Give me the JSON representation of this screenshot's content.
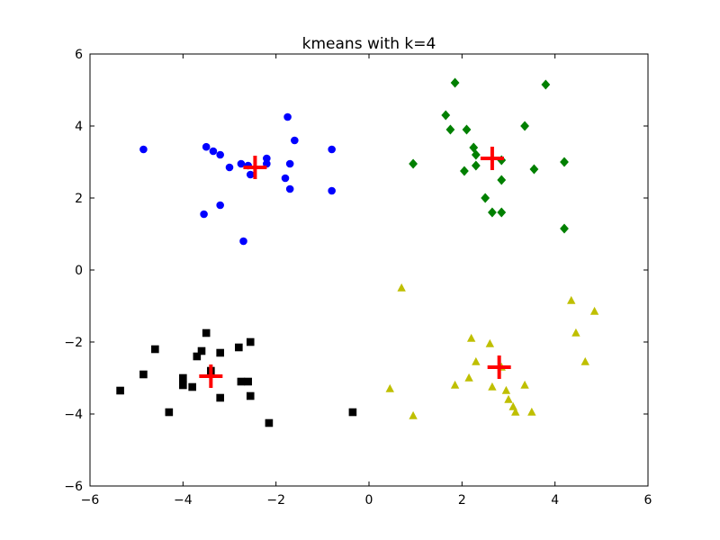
{
  "chart_data": {
    "type": "scatter",
    "title": "kmeans with k=4",
    "xlabel": "",
    "ylabel": "",
    "xlim": [
      -6,
      6
    ],
    "ylim": [
      -6,
      6
    ],
    "xticks": [
      -6,
      -4,
      -2,
      0,
      2,
      4,
      6
    ],
    "yticks": [
      -6,
      -4,
      -2,
      0,
      2,
      4,
      6
    ],
    "xtick_labels": [
      "−6",
      "−4",
      "−2",
      "0",
      "2",
      "4",
      "6"
    ],
    "ytick_labels": [
      "−6",
      "−4",
      "−2",
      "0",
      "2",
      "4",
      "6"
    ],
    "grid": false,
    "legend": "none",
    "series": [
      {
        "marker": "circle",
        "color": "#0000ff",
        "points": [
          [
            -4.85,
            3.35
          ],
          [
            -3.5,
            3.42
          ],
          [
            -3.35,
            3.3
          ],
          [
            -3.2,
            3.2
          ],
          [
            -3.0,
            2.85
          ],
          [
            -2.75,
            2.95
          ],
          [
            -2.6,
            2.9
          ],
          [
            -2.55,
            2.65
          ],
          [
            -2.2,
            3.1
          ],
          [
            -2.2,
            2.95
          ],
          [
            -1.8,
            2.55
          ],
          [
            -1.75,
            4.25
          ],
          [
            -1.7,
            2.95
          ],
          [
            -1.7,
            2.25
          ],
          [
            -1.6,
            3.6
          ],
          [
            -0.8,
            3.35
          ],
          [
            -0.8,
            2.2
          ],
          [
            -3.55,
            1.55
          ],
          [
            -3.2,
            1.8
          ],
          [
            -2.7,
            0.8
          ]
        ]
      },
      {
        "marker": "diamond",
        "color": "#008000",
        "points": [
          [
            1.85,
            5.2
          ],
          [
            3.8,
            5.15
          ],
          [
            1.65,
            4.3
          ],
          [
            1.75,
            3.9
          ],
          [
            2.1,
            3.9
          ],
          [
            3.35,
            4.0
          ],
          [
            2.25,
            3.4
          ],
          [
            2.3,
            3.2
          ],
          [
            2.3,
            2.9
          ],
          [
            2.05,
            2.75
          ],
          [
            2.85,
            3.05
          ],
          [
            3.55,
            2.8
          ],
          [
            4.2,
            3.0
          ],
          [
            0.95,
            2.95
          ],
          [
            2.85,
            2.5
          ],
          [
            2.5,
            2.0
          ],
          [
            2.65,
            1.6
          ],
          [
            2.85,
            1.6
          ],
          [
            4.2,
            1.15
          ]
        ]
      },
      {
        "marker": "square",
        "color": "#000000",
        "points": [
          [
            -5.35,
            -3.35
          ],
          [
            -4.85,
            -2.9
          ],
          [
            -4.6,
            -2.2
          ],
          [
            -4.3,
            -3.95
          ],
          [
            -4.0,
            -3.0
          ],
          [
            -4.0,
            -3.2
          ],
          [
            -3.8,
            -3.25
          ],
          [
            -3.7,
            -2.4
          ],
          [
            -3.6,
            -2.25
          ],
          [
            -3.5,
            -1.75
          ],
          [
            -3.4,
            -2.8
          ],
          [
            -3.2,
            -2.3
          ],
          [
            -3.2,
            -3.55
          ],
          [
            -2.8,
            -2.15
          ],
          [
            -2.75,
            -3.1
          ],
          [
            -2.6,
            -3.1
          ],
          [
            -2.55,
            -2.0
          ],
          [
            -2.55,
            -3.5
          ],
          [
            -2.15,
            -4.25
          ],
          [
            -0.35,
            -3.95
          ]
        ]
      },
      {
        "marker": "triangle",
        "color": "#bfbf00",
        "points": [
          [
            0.7,
            -0.5
          ],
          [
            0.45,
            -3.3
          ],
          [
            0.95,
            -4.05
          ],
          [
            1.85,
            -3.2
          ],
          [
            2.15,
            -3.0
          ],
          [
            2.2,
            -1.9
          ],
          [
            2.3,
            -2.55
          ],
          [
            2.6,
            -2.05
          ],
          [
            2.65,
            -3.25
          ],
          [
            2.85,
            -2.7
          ],
          [
            2.95,
            -3.35
          ],
          [
            3.0,
            -3.6
          ],
          [
            3.1,
            -3.8
          ],
          [
            3.15,
            -3.95
          ],
          [
            3.35,
            -3.2
          ],
          [
            3.5,
            -3.95
          ],
          [
            4.35,
            -0.85
          ],
          [
            4.45,
            -1.75
          ],
          [
            4.65,
            -2.55
          ],
          [
            4.85,
            -1.15
          ]
        ]
      }
    ],
    "centroids": {
      "marker": "plus",
      "color": "#ff0000",
      "points": [
        [
          -2.45,
          2.85
        ],
        [
          2.65,
          3.1
        ],
        [
          -3.4,
          -2.95
        ],
        [
          2.8,
          -2.7
        ]
      ]
    }
  }
}
